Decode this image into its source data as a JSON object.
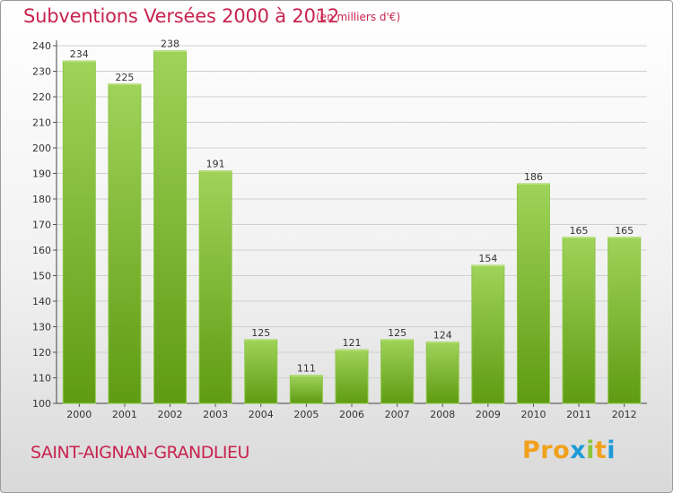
{
  "header": {
    "title": "Subventions Versées 2000 à 2012",
    "subtitle": "(en milliers d'€)"
  },
  "footer": {
    "commune": "SAINT-AIGNAN-GRANDLIEU",
    "logo_text": "Proxiti"
  },
  "colors": {
    "title": "#c8234f",
    "bar_light": "#9fd35a",
    "bar_dark": "#5f9b12",
    "logo_letters": [
      "#f0a11c",
      "#f0a11c",
      "#f0a11c",
      "#1e9ad6",
      "#8dc63f",
      "#f0a11c",
      "#1e9ad6"
    ]
  },
  "chart_data": {
    "type": "bar",
    "categories": [
      "2000",
      "2001",
      "2002",
      "2003",
      "2004",
      "2005",
      "2006",
      "2007",
      "2008",
      "2009",
      "2010",
      "2011",
      "2012"
    ],
    "values": [
      234,
      225,
      238,
      191,
      125,
      111,
      121,
      125,
      124,
      154,
      186,
      165,
      165
    ],
    "ylim": [
      100,
      240
    ],
    "yticks": [
      100,
      110,
      120,
      130,
      140,
      150,
      160,
      170,
      180,
      190,
      200,
      210,
      220,
      230,
      240
    ],
    "grid": true,
    "legend": "none"
  }
}
